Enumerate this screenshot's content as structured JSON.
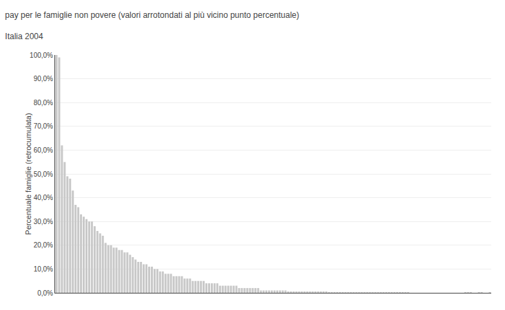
{
  "chart_data": {
    "type": "bar",
    "title": "pay per le famiglie non povere (valori arrotondati al più vicino punto percentuale)",
    "subtitle": "Italia 2004",
    "ylabel": "Percentuale famiglie (retrocumulata)",
    "color": "#c8c8c8",
    "grid": true,
    "tick_labels": "y",
    "ylim": [
      0.0,
      1.0
    ],
    "yticks": [
      {
        "value": 0.0,
        "label": "0,0%"
      },
      {
        "value": 0.1,
        "label": "10,0%"
      },
      {
        "value": 0.2,
        "label": "20,0%"
      },
      {
        "value": 0.3,
        "label": "30,0%"
      },
      {
        "value": 0.4,
        "label": "40,0%"
      },
      {
        "value": 0.5,
        "label": "50,0%"
      },
      {
        "value": 0.6,
        "label": "60,0%"
      },
      {
        "value": 0.7,
        "label": "70,0%"
      },
      {
        "value": 0.8,
        "label": "80,0%"
      },
      {
        "value": 0.9,
        "label": "90,0%"
      },
      {
        "value": 1.0,
        "label": "100,0%"
      }
    ],
    "categories": [
      null,
      null,
      null,
      null,
      null,
      null,
      null,
      null,
      null,
      null,
      null,
      null,
      null,
      null,
      null,
      null,
      null,
      null,
      null,
      null,
      null,
      null,
      null,
      null,
      null,
      null,
      null,
      null,
      null,
      null,
      null,
      null,
      null,
      null,
      null,
      null,
      null,
      null,
      null,
      null,
      null,
      null,
      null,
      null,
      null,
      null,
      null,
      null,
      null,
      null,
      null,
      null,
      null,
      null,
      null,
      null,
      null,
      null,
      null,
      null,
      null,
      null,
      null,
      null,
      null,
      null,
      null,
      null,
      null,
      null,
      null,
      null,
      null,
      null,
      null,
      null,
      null,
      null,
      null,
      null,
      null,
      null,
      null,
      null,
      null,
      null,
      null,
      null,
      null,
      null,
      null,
      null,
      null,
      null,
      null,
      null,
      null,
      null,
      null,
      null,
      null,
      null,
      null,
      null,
      null,
      null,
      null,
      null,
      null,
      null,
      null,
      null,
      null,
      null,
      null,
      null,
      null,
      null,
      null,
      null,
      null,
      null,
      null,
      null,
      null,
      null,
      null,
      null,
      null,
      null,
      null,
      null,
      null,
      null,
      null,
      null,
      null,
      null,
      null,
      null,
      null,
      null,
      null,
      null,
      null,
      null,
      null,
      null,
      null,
      null,
      null,
      null,
      null,
      null,
      null,
      null,
      null,
      null,
      null,
      null
    ],
    "values": [
      1.0,
      0.99,
      0.62,
      0.55,
      0.49,
      0.48,
      0.43,
      0.37,
      0.36,
      0.33,
      0.32,
      0.31,
      0.3,
      0.3,
      0.28,
      0.26,
      0.25,
      0.24,
      0.21,
      0.2,
      0.2,
      0.19,
      0.19,
      0.18,
      0.18,
      0.17,
      0.17,
      0.16,
      0.15,
      0.14,
      0.13,
      0.13,
      0.12,
      0.12,
      0.11,
      0.11,
      0.1,
      0.1,
      0.09,
      0.09,
      0.08,
      0.08,
      0.08,
      0.07,
      0.07,
      0.07,
      0.07,
      0.06,
      0.06,
      0.06,
      0.05,
      0.05,
      0.05,
      0.05,
      0.05,
      0.04,
      0.04,
      0.04,
      0.04,
      0.04,
      0.03,
      0.03,
      0.03,
      0.03,
      0.03,
      0.03,
      0.03,
      0.02,
      0.02,
      0.02,
      0.02,
      0.02,
      0.02,
      0.02,
      0.02,
      0.01,
      0.01,
      0.01,
      0.01,
      0.01,
      0.01,
      0.01,
      0.01,
      0.01,
      0.01,
      0.005,
      0.005,
      0.005,
      0.005,
      0.005,
      0.003,
      0.003,
      0.003,
      0.003,
      0.003,
      0.003,
      0.003,
      0.003,
      0.003,
      0.003,
      0.002,
      0.002,
      0.002,
      0.002,
      0.002,
      0.002,
      0.002,
      0.002,
      0.002,
      0.002,
      0.001,
      0.001,
      0.001,
      0.001,
      0.001,
      0.001,
      0.001,
      0.001,
      0.001,
      0.001,
      0.001,
      0.001,
      0.001,
      0.001,
      0.001,
      0.001,
      0.001,
      0.001,
      0.001,
      0.001,
      0.0,
      0.0,
      0.0,
      0.0,
      0.0,
      0.0,
      0.0,
      0.0,
      0.0,
      0.0,
      0.0,
      0.0,
      0.0,
      0.0,
      0.0,
      0.0,
      0.0,
      0.0,
      0.0,
      0.0,
      0.001,
      0.001,
      0.001,
      0.0,
      0.0,
      0.001,
      0.001,
      0.0,
      0.0,
      0.001
    ]
  }
}
